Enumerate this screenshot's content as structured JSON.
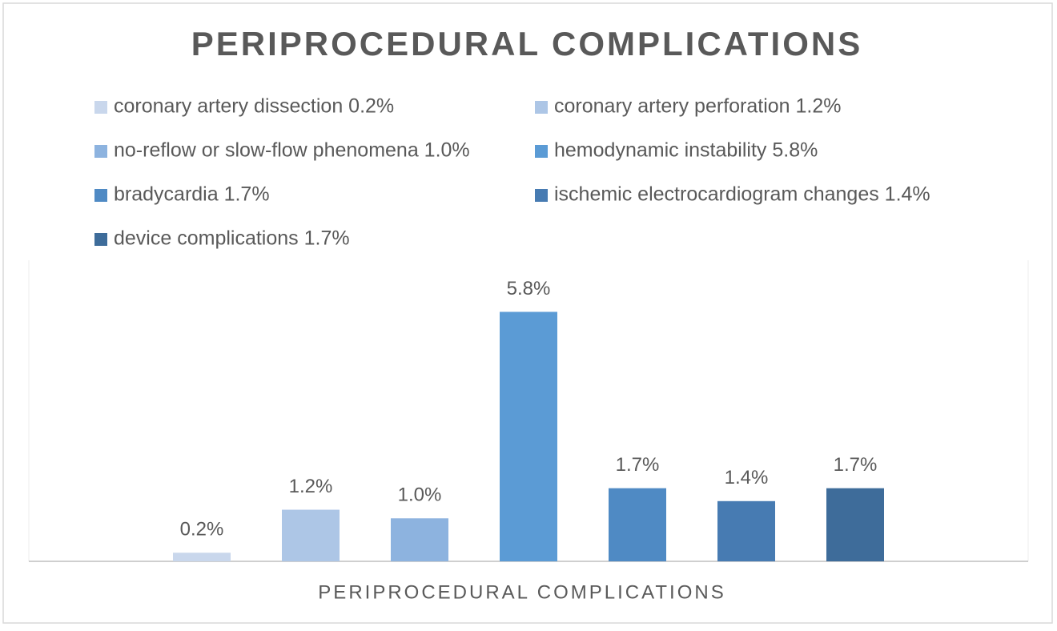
{
  "chart_data": {
    "type": "bar",
    "title": "PERIPROCEDURAL COMPLICATIONS",
    "categories": [
      "PERIPROCEDURAL COMPLICATIONS"
    ],
    "series": [
      {
        "name": "coronary artery dissection 0.2%",
        "color": "#c9d7ec",
        "values": [
          0.2
        ],
        "value_labels": [
          "0.2%"
        ]
      },
      {
        "name": "coronary artery perforation 1.2%",
        "color": "#adc6e6",
        "values": [
          1.2
        ],
        "value_labels": [
          "1.2%"
        ]
      },
      {
        "name": "no-reflow or slow-flow phenomena 1.0%",
        "color": "#8db3df",
        "values": [
          1.0
        ],
        "value_labels": [
          "1.0%"
        ]
      },
      {
        "name": "hemodynamic instability 5.8%",
        "color": "#5b9bd5",
        "values": [
          5.8
        ],
        "value_labels": [
          "5.8%"
        ]
      },
      {
        "name": "bradycardia 1.7%",
        "color": "#4f8ac4",
        "values": [
          1.7
        ],
        "value_labels": [
          "1.7%"
        ]
      },
      {
        "name": "ischemic electrocardiogram changes 1.4%",
        "color": "#477bb2",
        "values": [
          1.4
        ],
        "value_labels": [
          "1.4%"
        ]
      },
      {
        "name": "device complications 1.7%",
        "color": "#3e6c9a",
        "values": [
          1.7
        ],
        "value_labels": [
          "1.7%"
        ]
      }
    ],
    "ylim": [
      0,
      7
    ],
    "legend": "top"
  }
}
